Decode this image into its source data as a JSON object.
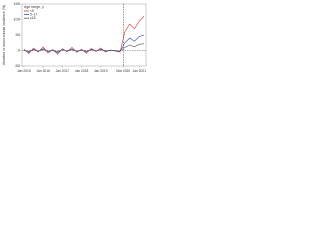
{
  "chart_data": {
    "type": "line",
    "y_label": "Variation in mean annual incidence (%)",
    "legend_title": "Age range, y",
    "x": [
      "2015-01",
      "2015-04",
      "2015-07",
      "2015-10",
      "2016-01",
      "2016-04",
      "2016-07",
      "2016-10",
      "2017-01",
      "2017-04",
      "2017-07",
      "2017-10",
      "2018-01",
      "2018-04",
      "2018-07",
      "2018-10",
      "2019-01",
      "2019-04",
      "2019-07",
      "2019-10",
      "2020-01",
      "2020-04",
      "2020-07",
      "2020-10",
      "2021-01",
      "2021-04"
    ],
    "xticks": [
      {
        "value": "2015-01",
        "label": "Jan 2015"
      },
      {
        "value": "2016-01",
        "label": "Jan 2016"
      },
      {
        "value": "2017-01",
        "label": "Jan 2017"
      },
      {
        "value": "2018-01",
        "label": "Jan 2018"
      },
      {
        "value": "2019-01",
        "label": "Jan 2019"
      },
      {
        "value": "2020-03",
        "label": "Mar 2020"
      },
      {
        "value": "2021-01",
        "label": "Jan 2021"
      }
    ],
    "ylim": [
      -50,
      150
    ],
    "yticks": [
      -50,
      0,
      50,
      100,
      150
    ],
    "marker_x": "2020-03",
    "legend": "upper left",
    "series": [
      {
        "name": "<5",
        "color": "#e03030",
        "values": [
          5,
          -10,
          8,
          -5,
          12,
          -8,
          3,
          -12,
          6,
          -4,
          10,
          -6,
          4,
          -9,
          7,
          -3,
          8,
          -5,
          2,
          -2,
          -5,
          60,
          85,
          70,
          95,
          110
        ]
      },
      {
        "name": "5–17",
        "color": "#3050c0",
        "values": [
          2,
          -6,
          4,
          -3,
          6,
          -4,
          1,
          -7,
          3,
          -2,
          5,
          -3,
          2,
          -5,
          4,
          -2,
          4,
          -3,
          1,
          -1,
          -3,
          25,
          40,
          30,
          45,
          50
        ]
      },
      {
        "name": "≥18",
        "color": "#555555",
        "values": [
          1,
          -3,
          2,
          -2,
          3,
          -2,
          0,
          -3,
          2,
          -1,
          2,
          -2,
          1,
          -2,
          2,
          -1,
          2,
          -1,
          0,
          0,
          -2,
          10,
          18,
          12,
          20,
          22
        ]
      }
    ]
  }
}
